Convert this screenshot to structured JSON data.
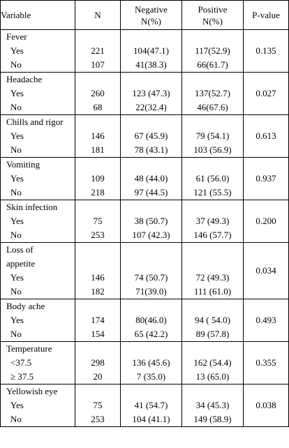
{
  "table": {
    "headers": {
      "variable": "Variable",
      "n": "N",
      "negative_line1": "Negative",
      "negative_line2": "N(%)",
      "positive_line1": "Positive",
      "positive_line2": "N(%)",
      "pvalue": "P-value"
    },
    "groups": [
      {
        "name": "Fever",
        "rows": [
          {
            "label": "Yes",
            "n": "221",
            "neg": "104(47.1)",
            "pos": "117(52.9)"
          },
          {
            "label": "No",
            "n": "107",
            "neg": "41(38.3)",
            "pos": "66(61.7)"
          }
        ],
        "p": "0.135"
      },
      {
        "name": "Headache",
        "rows": [
          {
            "label": "Yes",
            "n": "260",
            "neg": "123 (47.3)",
            "pos": "137(52.7)"
          },
          {
            "label": "No",
            "n": "68",
            "neg": "22(32.4)",
            "pos": "46(67.6)"
          }
        ],
        "p": "0.027"
      },
      {
        "name": "Chills and rigor",
        "rows": [
          {
            "label": "Yes",
            "n": "146",
            "neg": "67 (45.9)",
            "pos": "79 (54.1)"
          },
          {
            "label": "No",
            "n": "181",
            "neg": "78 (43.1)",
            "pos": "103 (56.9)"
          }
        ],
        "p": "0.613"
      },
      {
        "name": "Vomiting",
        "rows": [
          {
            "label": "Yes",
            "n": "109",
            "neg": "48 (44.0)",
            "pos": "61 (56.0)"
          },
          {
            "label": "No",
            "n": "218",
            "neg": "97 (44.5)",
            "pos": "121 (55.5)"
          }
        ],
        "p": "0.937"
      },
      {
        "name": "Skin infection",
        "rows": [
          {
            "label": "Yes",
            "n": "75",
            "neg": "38 (50.7)",
            "pos": "37 (49.3)"
          },
          {
            "label": "No",
            "n": "253",
            "neg": "107 (42.3)",
            "pos": "146 (57.7)"
          }
        ],
        "p": "0.200"
      },
      {
        "name": "Loss of",
        "name2": "appetite",
        "rows": [
          {
            "label": "Yes",
            "n": "146",
            "neg": "74 (50.7)",
            "pos": "72 (49.3)"
          },
          {
            "label": "No",
            "n": "182",
            "neg": "71(39.0)",
            "pos": "111 (61.0)"
          }
        ],
        "p": "0.034"
      },
      {
        "name": "Body ache",
        "rows": [
          {
            "label": "Yes",
            "n": "174",
            "neg": "80(46.0)",
            "pos": "94 ( 54.0)"
          },
          {
            "label": "No",
            "n": "154",
            "neg": "65 (42.2)",
            "pos": "89 (57.8)"
          }
        ],
        "p": "0.493"
      },
      {
        "name": "Temperature",
        "rows": [
          {
            "label": "<37.5",
            "n": "298",
            "neg": "136 (45.6)",
            "pos": "162 (54.4)"
          },
          {
            "label": "≥ 37.5",
            "n": "20",
            "neg": "7 (35.0)",
            "pos": "13 (65.0)"
          }
        ],
        "p": "0.355"
      },
      {
        "name": "Yellowish eye",
        "rows": [
          {
            "label": "Yes",
            "n": "75",
            "neg": "41 (54.7)",
            "pos": "34 (45.3)"
          },
          {
            "label": "No",
            "n": "253",
            "neg": "104 (41.1)",
            "pos": "149 (58.9)"
          }
        ],
        "p": "0.038"
      }
    ]
  }
}
